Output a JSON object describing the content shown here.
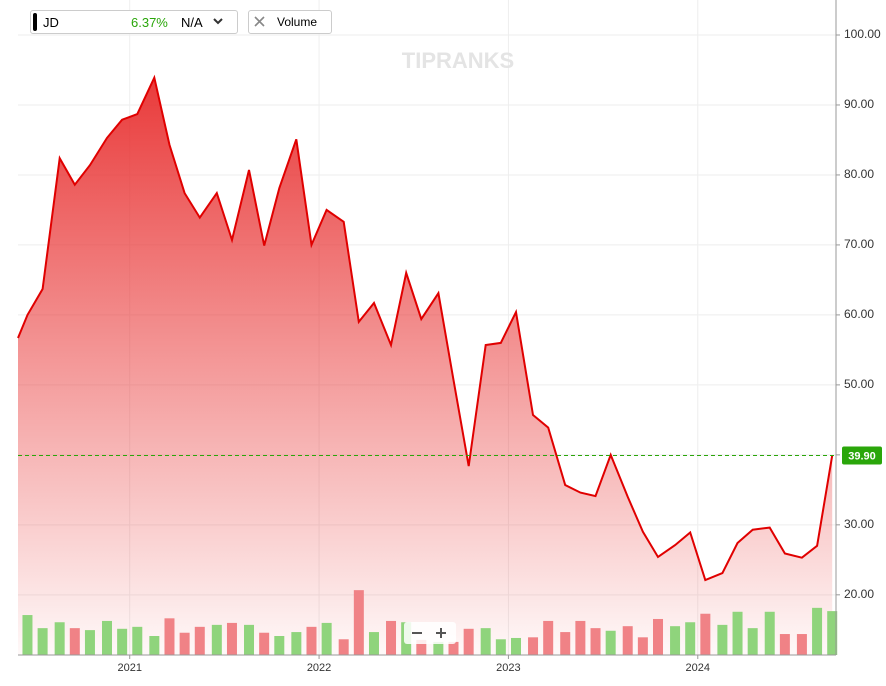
{
  "toolbar": {
    "symbol": "JD",
    "change": "6.37%",
    "value": "N/A",
    "indicator": "Volume"
  },
  "watermark": "TIPRANKS",
  "chart_data": {
    "type": "line",
    "x": [
      2020.41,
      2020.46,
      2020.54,
      2020.63,
      2020.71,
      2020.79,
      2020.88,
      2020.96,
      2021.04,
      2021.13,
      2021.21,
      2021.29,
      2021.37,
      2021.46,
      2021.54,
      2021.63,
      2021.71,
      2021.79,
      2021.88,
      2021.96,
      2022.04,
      2022.13,
      2022.21,
      2022.29,
      2022.38,
      2022.46,
      2022.54,
      2022.63,
      2022.71,
      2022.79,
      2022.88,
      2022.96,
      2023.04,
      2023.13,
      2023.21,
      2023.3,
      2023.38,
      2023.46,
      2023.54,
      2023.63,
      2023.71,
      2023.79,
      2023.88,
      2023.96,
      2024.04,
      2024.13,
      2024.21,
      2024.29,
      2024.38,
      2024.46,
      2024.55,
      2024.63,
      2024.71
    ],
    "series": [
      {
        "name": "JD",
        "color": "#e00000",
        "values": [
          56.7,
          60,
          63.7,
          82.4,
          78.6,
          81.4,
          85.3,
          87.9,
          88.7,
          93.9,
          84.3,
          77.4,
          73.9,
          77.4,
          70.7,
          80.7,
          69.9,
          78.1,
          85.1,
          70,
          75,
          73.3,
          59,
          61.7,
          55.7,
          66,
          59.4,
          63.1,
          50.7,
          38.4,
          55.7,
          56,
          60.4,
          45.7,
          43.9,
          35.7,
          34.6,
          34.1,
          40,
          34,
          29,
          25.4,
          27.1,
          28.9,
          22.1,
          23.1,
          27.4,
          29.3,
          29.6,
          25.9,
          25.3,
          27,
          39.9
        ]
      },
      {
        "name": "Volume",
        "axis": "y2",
        "values": [
          null,
          6.1,
          4.1,
          5.0,
          4.1,
          3.8,
          5.2,
          4.0,
          4.3,
          2.9,
          5.6,
          3.4,
          4.3,
          4.6,
          4.9,
          4.6,
          3.4,
          2.9,
          3.5,
          4.3,
          4.9,
          2.4,
          9.9,
          3.5,
          5.2,
          5.0,
          2.3,
          2.0,
          2.0,
          4.0,
          4.1,
          2.4,
          2.6,
          2.7,
          5.2,
          3.5,
          5.2,
          4.1,
          3.7,
          4.4,
          2.7,
          5.5,
          4.4,
          5.0,
          6.3,
          4.6,
          6.6,
          4.1,
          6.6,
          3.2,
          3.2,
          7.2,
          6.7
        ],
        "colors": [
          null,
          "#8fd47c",
          "#8fd47c",
          "#8fd47c",
          "#f08286",
          "#8fd47c",
          "#8fd47c",
          "#8fd47c",
          "#8fd47c",
          "#8fd47c",
          "#f08286",
          "#f08286",
          "#f08286",
          "#8fd47c",
          "#f08286",
          "#8fd47c",
          "#f08286",
          "#8fd47c",
          "#8fd47c",
          "#f08286",
          "#8fd47c",
          "#f08286",
          "#f08286",
          "#8fd47c",
          "#f08286",
          "#8fd47c",
          "#f08286",
          "#8fd47c",
          "#f08286",
          "#f08286",
          "#8fd47c",
          "#8fd47c",
          "#8fd47c",
          "#f08286",
          "#f08286",
          "#f08286",
          "#f08286",
          "#f08286",
          "#8fd47c",
          "#f08286",
          "#f08286",
          "#f08286",
          "#8fd47c",
          "#8fd47c",
          "#f08286",
          "#8fd47c",
          "#8fd47c",
          "#8fd47c",
          "#8fd47c",
          "#f08286",
          "#f08286",
          "#8fd47c",
          "#8fd47c"
        ]
      }
    ],
    "xlim": [
      2020.41,
      2024.73
    ],
    "xticks": [
      2021,
      2022,
      2023,
      2024
    ],
    "ylim": [
      11.4,
      105
    ],
    "yticks": [
      {
        "value": 20,
        "label": "20.00"
      },
      {
        "value": 30,
        "label": "30.00"
      },
      {
        "value": 40,
        "label": "40.00"
      },
      {
        "value": 50,
        "label": "50.00"
      },
      {
        "value": 60,
        "label": "60.00"
      },
      {
        "value": 70,
        "label": "70.00"
      },
      {
        "value": 80,
        "label": "80.00"
      },
      {
        "value": 90,
        "label": "90.00"
      },
      {
        "value": 100,
        "label": "100.00"
      }
    ],
    "y2lim": [
      0,
      100
    ],
    "price_line": {
      "value": 39.9,
      "label": "39.90",
      "color": "#2aa60a"
    },
    "grid": true
  }
}
